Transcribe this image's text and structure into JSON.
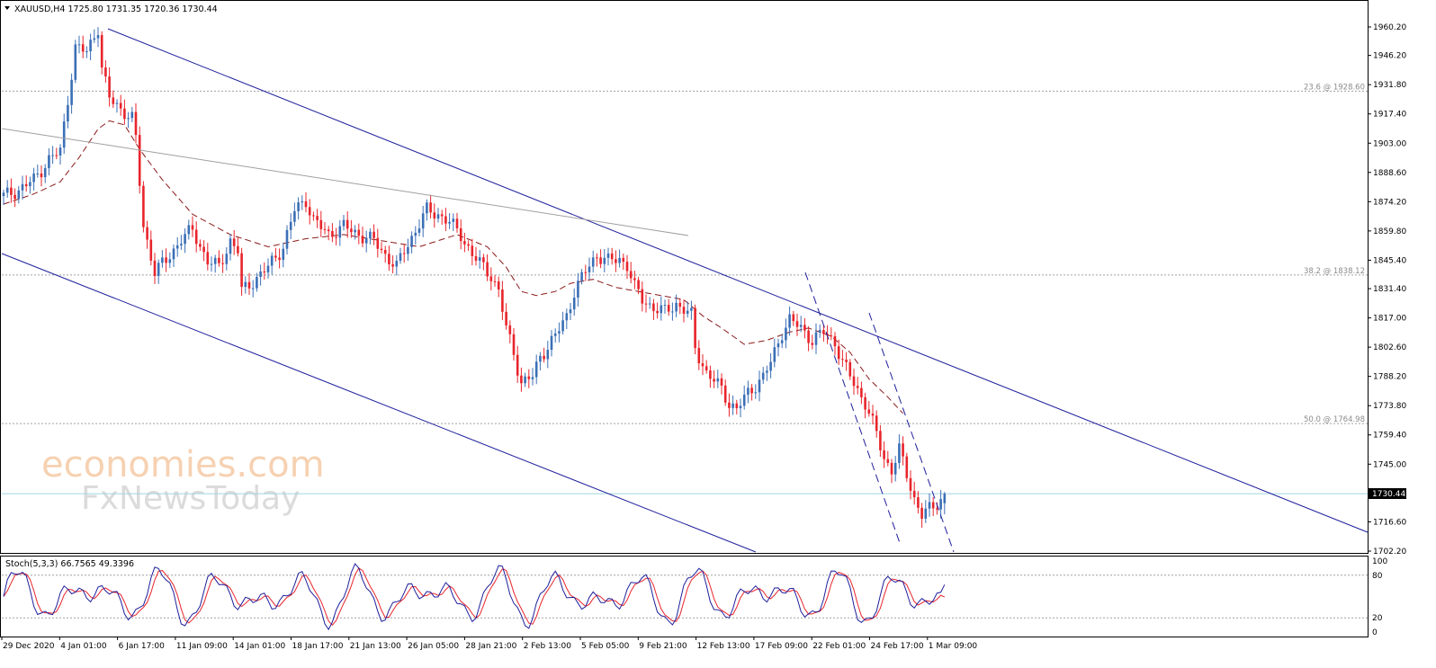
{
  "header": {
    "symbol_text": "XAUUSD,H4  1725.80 1731.35 1720.36 1730.44",
    "stoch_text": "Stoch(5,3,3) 66.7565 49.3396"
  },
  "watermark": {
    "line1": "economies.com",
    "line2": "FxNewsToday"
  },
  "current_price_label": "1730.44",
  "colors": {
    "bull": "#3b6fb6",
    "bear": "#e8242b",
    "channel": "#1f1f9c",
    "ma": "#8b1a1a",
    "stoch_main": "#1f1f9c",
    "stoch_signal": "#e8242b",
    "level_line": "#a0a0a0"
  },
  "chart_data": [
    {
      "type": "candlestick",
      "title": "XAUUSD,H4",
      "ylim": [
        1702.2,
        1960.2
      ],
      "y_ticks": [
        "1960.20",
        "1946.20",
        "1931.80",
        "1917.40",
        "1903.00",
        "1888.60",
        "1874.20",
        "1859.80",
        "1845.40",
        "1831.40",
        "1817.00",
        "1802.60",
        "1788.20",
        "1773.80",
        "1759.40",
        "1745.00",
        "1730.44",
        "1716.60",
        "1702.20"
      ],
      "x_ticks": [
        "29 Dec 2020",
        "4 Jan 01:00",
        "6 Jan 17:00",
        "11 Jan 09:00",
        "14 Jan 01:00",
        "18 Jan 17:00",
        "21 Jan 13:00",
        "26 Jan 05:00",
        "28 Jan 21:00",
        "2 Feb 13:00",
        "5 Feb 05:00",
        "9 Feb 21:00",
        "12 Feb 13:00",
        "17 Feb 09:00",
        "22 Feb 01:00",
        "24 Feb 17:00",
        "1 Mar 09:00"
      ],
      "last": {
        "open": 1725.8,
        "high": 1731.35,
        "low": 1720.36,
        "close": 1730.44
      },
      "fib_levels": [
        {
          "label": "23.6 @ 1928.60",
          "value": 1928.6
        },
        {
          "label": "38.2 @ 1838.12",
          "value": 1838.12
        },
        {
          "label": "50.0 @ 1764.98",
          "value": 1764.98
        }
      ],
      "price_path": [
        [
          0,
          1877
        ],
        [
          4,
          1880
        ],
        [
          8,
          1885
        ],
        [
          12,
          1895
        ],
        [
          15,
          1899
        ],
        [
          16,
          1912
        ],
        [
          19,
          1950
        ],
        [
          22,
          1948
        ],
        [
          25,
          1960
        ],
        [
          26,
          1940
        ],
        [
          28,
          1925
        ],
        [
          31,
          1920
        ],
        [
          34,
          1915
        ],
        [
          35,
          1905
        ],
        [
          37,
          1862
        ],
        [
          40,
          1840
        ],
        [
          43,
          1845
        ],
        [
          47,
          1856
        ],
        [
          50,
          1860
        ],
        [
          54,
          1845
        ],
        [
          57,
          1842
        ],
        [
          60,
          1855
        ],
        [
          62,
          1850
        ],
        [
          63,
          1830
        ],
        [
          66,
          1835
        ],
        [
          70,
          1842
        ],
        [
          74,
          1852
        ],
        [
          77,
          1870
        ],
        [
          80,
          1875
        ],
        [
          82,
          1865
        ],
        [
          86,
          1858
        ],
        [
          90,
          1862
        ],
        [
          94,
          1858
        ],
        [
          98,
          1855
        ],
        [
          101,
          1848
        ],
        [
          104,
          1842
        ],
        [
          106,
          1850
        ],
        [
          109,
          1860
        ],
        [
          112,
          1870
        ],
        [
          115,
          1868
        ],
        [
          118,
          1864
        ],
        [
          121,
          1858
        ],
        [
          124,
          1848
        ],
        [
          127,
          1842
        ],
        [
          129,
          1838
        ],
        [
          131,
          1830
        ],
        [
          133,
          1812
        ],
        [
          135,
          1800
        ],
        [
          137,
          1785
        ],
        [
          140,
          1788
        ],
        [
          142,
          1798
        ],
        [
          146,
          1808
        ],
        [
          149,
          1818
        ],
        [
          151,
          1830
        ],
        [
          154,
          1840
        ],
        [
          157,
          1848
        ],
        [
          160,
          1845
        ],
        [
          163,
          1846
        ],
        [
          165,
          1843
        ],
        [
          167,
          1832
        ],
        [
          169,
          1826
        ],
        [
          172,
          1822
        ],
        [
          175,
          1820
        ],
        [
          178,
          1824
        ],
        [
          180,
          1821
        ],
        [
          182,
          1818
        ],
        [
          183,
          1802
        ],
        [
          186,
          1790
        ],
        [
          190,
          1782
        ],
        [
          192,
          1775
        ],
        [
          194,
          1772
        ],
        [
          197,
          1780
        ],
        [
          201,
          1788
        ],
        [
          203,
          1795
        ],
        [
          206,
          1810
        ],
        [
          208,
          1816
        ],
        [
          211,
          1812
        ],
        [
          214,
          1806
        ],
        [
          217,
          1810
        ],
        [
          220,
          1805
        ],
        [
          222,
          1795
        ],
        [
          225,
          1785
        ],
        [
          228,
          1775
        ],
        [
          231,
          1760
        ],
        [
          233,
          1748
        ],
        [
          235,
          1742
        ],
        [
          237,
          1752
        ],
        [
          239,
          1740
        ],
        [
          241,
          1728
        ],
        [
          243,
          1720
        ],
        [
          246,
          1724
        ],
        [
          249,
          1730
        ]
      ],
      "ma_path": [
        [
          0,
          1873
        ],
        [
          8,
          1878
        ],
        [
          15,
          1884
        ],
        [
          20,
          1896
        ],
        [
          25,
          1910
        ],
        [
          28,
          1914
        ],
        [
          32,
          1912
        ],
        [
          36,
          1900
        ],
        [
          42,
          1885
        ],
        [
          50,
          1868
        ],
        [
          60,
          1858
        ],
        [
          70,
          1852
        ],
        [
          80,
          1856
        ],
        [
          90,
          1858
        ],
        [
          100,
          1855
        ],
        [
          110,
          1852
        ],
        [
          120,
          1858
        ],
        [
          128,
          1852
        ],
        [
          133,
          1842
        ],
        [
          137,
          1830
        ],
        [
          141,
          1828
        ],
        [
          146,
          1830
        ],
        [
          150,
          1834
        ],
        [
          156,
          1836
        ],
        [
          162,
          1832
        ],
        [
          168,
          1830
        ],
        [
          174,
          1828
        ],
        [
          180,
          1826
        ],
        [
          185,
          1818
        ],
        [
          190,
          1812
        ],
        [
          196,
          1804
        ],
        [
          202,
          1806
        ],
        [
          208,
          1810
        ],
        [
          213,
          1812
        ],
        [
          219,
          1808
        ],
        [
          224,
          1800
        ],
        [
          229,
          1787
        ],
        [
          234,
          1778
        ],
        [
          238,
          1770
        ]
      ],
      "stoch_ylim": [
        0,
        100
      ],
      "stoch_ticks": [
        "100",
        "80",
        "20",
        "0"
      ],
      "stoch_levels": [
        80,
        20
      ],
      "stoch_main_last": 66.7565,
      "stoch_signal_last": 49.3396
    }
  ]
}
